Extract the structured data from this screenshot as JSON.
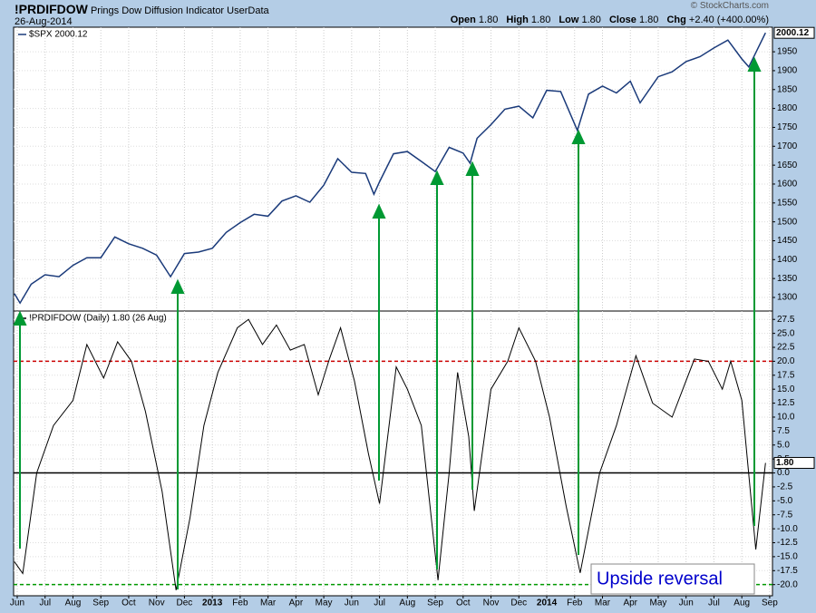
{
  "header": {
    "symbol": "!PRDIFDOW",
    "name": "Prings Dow Diffusion Indicator",
    "source": "UserData",
    "date": "26-Aug-2014",
    "copyright": "© StockCharts.com",
    "quote": [
      {
        "label": "Open",
        "value": "1.80"
      },
      {
        "label": "High",
        "value": "1.80"
      },
      {
        "label": "Low",
        "value": "1.80"
      },
      {
        "label": "Close",
        "value": "1.80"
      },
      {
        "label": "Chg",
        "value": "+2.40 (+400.00%)"
      }
    ]
  },
  "chart_data": [
    {
      "type": "line",
      "xlim": [
        -0.13,
        27.1
      ],
      "ylim": [
        1264,
        2015
      ],
      "yticks": [
        1300,
        1350,
        1400,
        1450,
        1500,
        1550,
        1600,
        1650,
        1700,
        1750,
        1800,
        1850,
        1900,
        1950
      ],
      "grid": true,
      "last_label": "2000.12",
      "x": [
        -0.1,
        0.1,
        0.5,
        1.0,
        1.5,
        2.0,
        2.5,
        3.0,
        3.5,
        4.0,
        4.5,
        5.0,
        5.5,
        6.0,
        6.5,
        7.0,
        7.5,
        8.0,
        8.5,
        9.0,
        9.5,
        10.0,
        10.5,
        11.0,
        11.5,
        12.0,
        12.5,
        12.8,
        13.0,
        13.5,
        14.0,
        14.5,
        15.0,
        15.5,
        16.0,
        16.25,
        16.5,
        17.0,
        17.5,
        18.0,
        18.5,
        19.0,
        19.5,
        20.1,
        20.5,
        21.0,
        21.5,
        22.0,
        22.35,
        23.0,
        23.5,
        24.0,
        24.5,
        25.0,
        25.5,
        26.0,
        26.25,
        26.85
      ],
      "series": [
        {
          "name": "$SPX 2000.12",
          "color": "#1a3a7a",
          "values": [
            1310,
            1285,
            1335,
            1360,
            1355,
            1385,
            1405,
            1405,
            1460,
            1442,
            1430,
            1412,
            1355,
            1416,
            1420,
            1430,
            1472,
            1498,
            1520,
            1515,
            1555,
            1569,
            1552,
            1597,
            1667,
            1631,
            1628,
            1573,
            1606,
            1680,
            1686,
            1660,
            1633,
            1697,
            1682,
            1655,
            1721,
            1757,
            1798,
            1806,
            1775,
            1848,
            1845,
            1742,
            1838,
            1859,
            1841,
            1872,
            1815,
            1884,
            1897,
            1924,
            1937,
            1960,
            1981,
            1931,
            1910,
            2000.12
          ]
        }
      ]
    },
    {
      "type": "line",
      "xlim": [
        -0.13,
        27.1
      ],
      "ylim": [
        -22,
        29
      ],
      "yticks": [
        27.5,
        {
          "value": 25,
          "label": "25.0"
        },
        22.5,
        {
          "value": 20,
          "label": "20.0"
        },
        17.5,
        {
          "value": 15,
          "label": "15.0"
        },
        12.5,
        {
          "value": 10,
          "label": "10.0"
        },
        7.5,
        {
          "value": 5,
          "label": "5.0"
        },
        2.5,
        {
          "value": 0,
          "label": "0.0"
        },
        -2.5,
        {
          "value": -5,
          "label": "-5.0"
        },
        -7.5,
        {
          "value": -10,
          "label": "-10.0"
        },
        -12.5,
        {
          "value": -15,
          "label": "-15.0"
        },
        -17.5,
        {
          "value": -20,
          "label": "-20.0"
        }
      ],
      "xticks": [
        {
          "value": 0,
          "label": "Jun"
        },
        {
          "value": 1,
          "label": "Jul"
        },
        {
          "value": 2,
          "label": "Aug"
        },
        {
          "value": 3,
          "label": "Sep"
        },
        {
          "value": 4,
          "label": "Oct"
        },
        {
          "value": 5,
          "label": "Nov"
        },
        {
          "value": 6,
          "label": "Dec"
        },
        {
          "value": 7,
          "label": "2013"
        },
        {
          "value": 8,
          "label": "Feb"
        },
        {
          "value": 9,
          "label": "Mar"
        },
        {
          "value": 10,
          "label": "Apr"
        },
        {
          "value": 11,
          "label": "May"
        },
        {
          "value": 12,
          "label": "Jun"
        },
        {
          "value": 13,
          "label": "Jul"
        },
        {
          "value": 14,
          "label": "Aug"
        },
        {
          "value": 15,
          "label": "Sep"
        },
        {
          "value": 16,
          "label": "Oct"
        },
        {
          "value": 17,
          "label": "Nov"
        },
        {
          "value": 18,
          "label": "Dec"
        },
        {
          "value": 19,
          "label": "2014"
        },
        {
          "value": 20,
          "label": "Feb"
        },
        {
          "value": 21,
          "label": "Mar"
        },
        {
          "value": 22,
          "label": "Apr"
        },
        {
          "value": 23,
          "label": "May"
        },
        {
          "value": 24,
          "label": "Jun"
        },
        {
          "value": 25,
          "label": "Jul"
        },
        {
          "value": 26,
          "label": "Aug"
        },
        {
          "value": 27,
          "label": "Sep"
        }
      ],
      "grid": true,
      "last_label": "1.80",
      "annotation": "Upside reversal",
      "ref_lines": [
        {
          "value": 20,
          "color": "#cc0000",
          "dash": true
        },
        {
          "value": 0,
          "color": "#000000",
          "dash": false
        },
        {
          "value": -20,
          "color": "#009900",
          "dash": true
        }
      ],
      "x": [
        -0.1,
        0.2,
        0.7,
        1.3,
        2.0,
        2.5,
        3.1,
        3.6,
        4.1,
        4.6,
        5.2,
        5.7,
        6.2,
        6.7,
        7.2,
        7.9,
        8.3,
        8.8,
        9.3,
        9.8,
        10.3,
        10.8,
        11.2,
        11.6,
        12.1,
        12.6,
        13.0,
        13.6,
        14.0,
        14.5,
        15.1,
        15.5,
        15.8,
        16.2,
        16.4,
        17.0,
        17.6,
        18.0,
        18.6,
        19.1,
        19.7,
        20.2,
        20.9,
        21.5,
        22.2,
        22.8,
        23.5,
        24.3,
        24.8,
        25.3,
        25.6,
        26.0,
        26.5,
        26.85
      ],
      "series": [
        {
          "name": "!PRDIFDOW (Daily) 1.80 (26 Aug)",
          "color": "#000000",
          "values": [
            -15.9,
            -18,
            0,
            8.5,
            13,
            23,
            17,
            23.5,
            20,
            11,
            -3.3,
            -21,
            -8,
            8.5,
            18,
            26,
            27.5,
            23,
            26.5,
            22,
            23,
            14,
            20.4,
            26,
            16.5,
            3.5,
            -5.5,
            19,
            15,
            8.5,
            -19.2,
            0,
            18,
            6.5,
            -6.8,
            15,
            20,
            26,
            20,
            10,
            -6,
            -17.9,
            0,
            8.5,
            21,
            12.5,
            10,
            20.4,
            20,
            15,
            20,
            13,
            -13.7,
            1.8
          ]
        }
      ]
    }
  ]
}
